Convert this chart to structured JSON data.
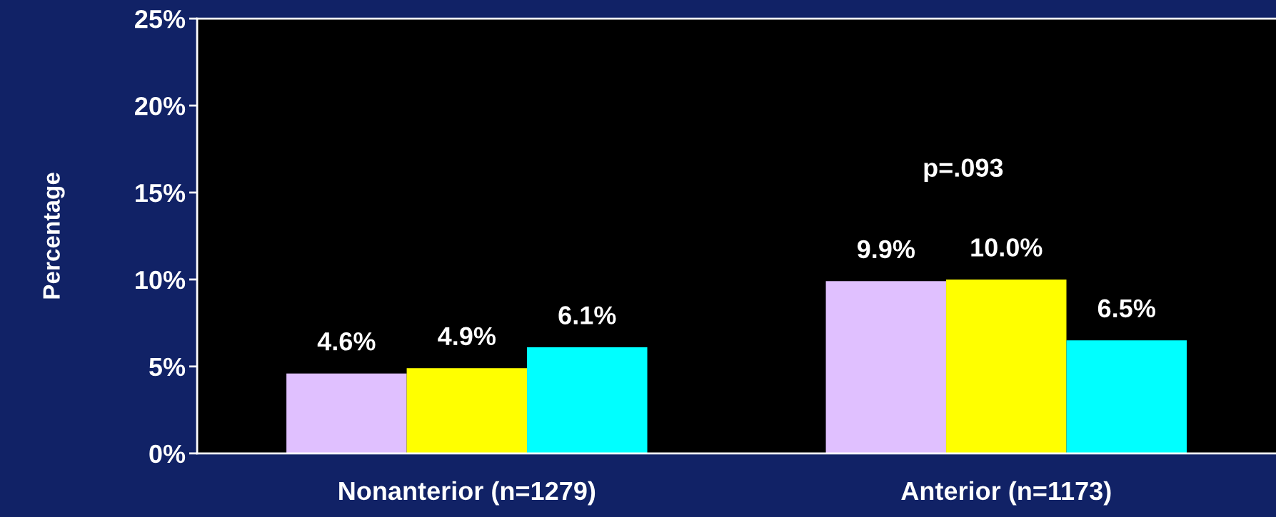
{
  "chart_data": {
    "type": "bar",
    "ylabel": "Percentage",
    "categories": [
      "Nonanterior (n=1279)",
      "Anterior (n=1173)"
    ],
    "series": [
      {
        "color": "#e0c0ff",
        "values": [
          4.6,
          9.9
        ],
        "value_labels": [
          "4.6%",
          "9.9%"
        ]
      },
      {
        "color": "#ffff00",
        "values": [
          4.9,
          10.0
        ],
        "value_labels": [
          "4.9%",
          "10.0%"
        ]
      },
      {
        "color": "#00ffff",
        "values": [
          6.1,
          6.5
        ],
        "value_labels": [
          "6.1%",
          "6.5%"
        ]
      }
    ],
    "ylim": [
      0,
      25
    ],
    "yticks": [
      {
        "value": 0,
        "label": "0%"
      },
      {
        "value": 5,
        "label": "5%"
      },
      {
        "value": 10,
        "label": "10%"
      },
      {
        "value": 15,
        "label": "15%"
      },
      {
        "value": 20,
        "label": "20%"
      },
      {
        "value": 25,
        "label": "25%"
      }
    ],
    "annotations": [
      "p=.093"
    ],
    "grid": false,
    "legend": false
  }
}
